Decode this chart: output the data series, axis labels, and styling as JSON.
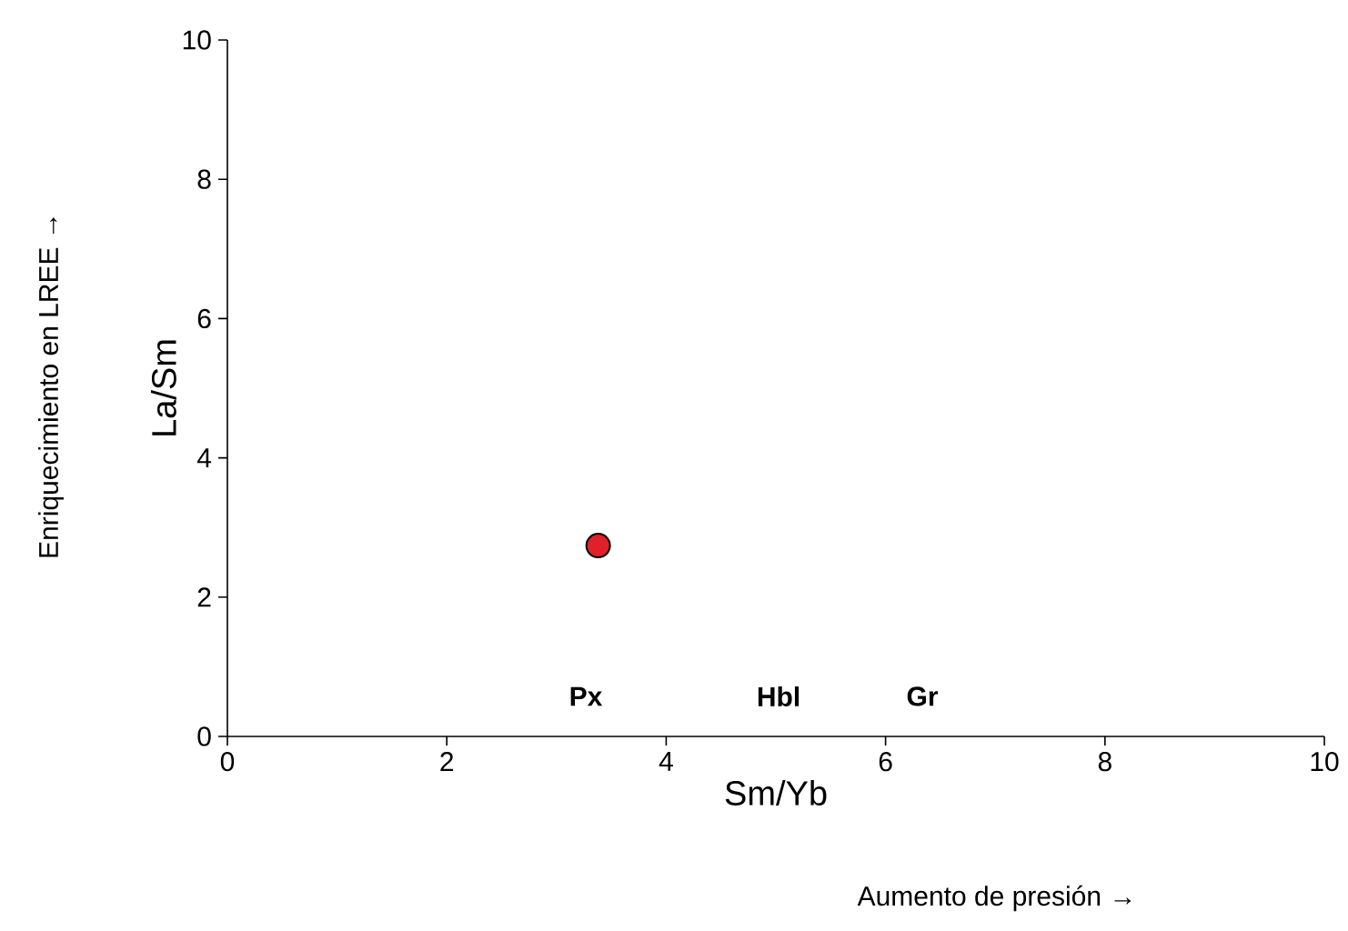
{
  "chart_data": {
    "type": "scatter",
    "xlabel": "Sm/Yb",
    "ylabel": "La/Sm",
    "xlim": [
      0,
      10
    ],
    "ylim": [
      0,
      10
    ],
    "xticks": [
      0,
      2,
      4,
      6,
      8,
      10
    ],
    "yticks": [
      0,
      2,
      4,
      6,
      8,
      10
    ],
    "grid": false,
    "series": [
      {
        "color": "#e0202a",
        "x": [
          3.38
        ],
        "values": [
          2.74
        ]
      }
    ],
    "annotations": [
      "**Px**",
      "**Hbl**",
      "**Gr**",
      "Enriquecimiento en LREE →",
      "Aumento de presión →"
    ]
  }
}
